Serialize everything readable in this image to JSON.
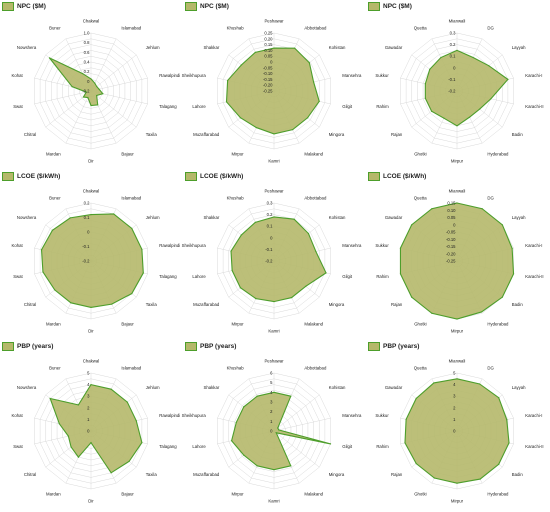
{
  "colors": {
    "fill": "#b5b86a",
    "stroke": "#4d9e2b",
    "grid": "#c8c8c8",
    "spoke": "#d0d0d0"
  },
  "chart_data": [
    {
      "type": "radar",
      "title": "NPC ($M)",
      "categories": [
        "Chakwal",
        "Islamabad",
        "Jehlum",
        "Rawalpindi",
        "Talagang",
        "Taxila",
        "Bajaur",
        "Dir",
        "Mardan",
        "Chitral",
        "Swat",
        "Kohat",
        "Nowshera",
        "Buner"
      ],
      "ticks": [
        "1.0",
        "0.8",
        "0.6",
        "0.4",
        "0.2",
        "0",
        "-0.2"
      ],
      "rlim": [
        -0.2,
        1.0
      ],
      "values": [
        0.05,
        -0.02,
        -0.05,
        -0.03,
        0.05,
        -0.05,
        0.12,
        0.1,
        -0.05,
        0.0,
        -0.1,
        0.2,
        0.9,
        0.2
      ]
    },
    {
      "type": "radar",
      "title": "NPC ($M)",
      "categories": [
        "Peshawar",
        "Abbottabad",
        "Kohistan",
        "Mansehra",
        "Gilgit",
        "Mingora",
        "Malakand",
        "Kamri",
        "Mirpur",
        "Muzaffarabad",
        "Lahore",
        "Sheikhupura",
        "Shakkar",
        "Khushab"
      ],
      "ticks": [
        "0.25",
        "0.20",
        "0.15",
        "0.10",
        "0.05",
        "0",
        "-0.05",
        "-0.10",
        "-0.15",
        "-0.20",
        "-0.25"
      ],
      "rlim": [
        -0.25,
        0.25
      ],
      "values": [
        0.12,
        0.16,
        0.14,
        0.1,
        0.15,
        0.12,
        0.12,
        0.12,
        0.1,
        0.12,
        0.17,
        0.16,
        0.11,
        0.12
      ]
    },
    {
      "type": "radar",
      "title": "NPC ($M)",
      "categories": [
        "Mianwali",
        "DG",
        "Layyah",
        "Karachi-I",
        "Karachi-II",
        "Badin",
        "Hyderabad",
        "Mirpur",
        "Ghotki",
        "Rajan",
        "Rahim",
        "Sukkur",
        "Gawadar",
        "Quetta"
      ],
      "ticks": [
        "0.3",
        "0.2",
        "0.1",
        "0",
        "-0.1",
        "-0.2"
      ],
      "rlim": [
        -0.2,
        0.3
      ],
      "values": [
        0.15,
        0.12,
        0.15,
        0.25,
        0.1,
        0.05,
        0.05,
        0.1,
        0.06,
        0.08,
        0.08,
        0.08,
        0.1,
        0.12
      ]
    },
    {
      "type": "radar",
      "title": "LCOE ($/kWh)",
      "categories": [
        "Chakwal",
        "Islamabad",
        "Jehlum",
        "Rawalpindi",
        "Talagang",
        "Taxila",
        "Bajaur",
        "Dir",
        "Mardan",
        "Chitral",
        "Swat",
        "Kohat",
        "Nowshera",
        "Buner"
      ],
      "ticks": [
        "0.2",
        "0.1",
        "0",
        "-0.1",
        "-0.2"
      ],
      "rlim": [
        -0.2,
        0.2
      ],
      "values": [
        0.12,
        0.16,
        0.16,
        0.16,
        0.17,
        0.16,
        0.13,
        0.12,
        0.12,
        0.12,
        0.14,
        0.15,
        0.14,
        0.13
      ]
    },
    {
      "type": "radar",
      "title": "LCOE ($/kWh)",
      "categories": [
        "Peshawar",
        "Abbottabad",
        "Kohistan",
        "Mansehra",
        "Gilgit",
        "Mingora",
        "Malakand",
        "Kamri",
        "Mirpur",
        "Muzaffarabad",
        "Lahore",
        "Sheikhupura",
        "Shakkar",
        "Khushab"
      ],
      "ticks": [
        "0.3",
        "0.2",
        "0.1",
        "0",
        "-0.1",
        "-0.2"
      ],
      "rlim": [
        -0.2,
        0.3
      ],
      "values": [
        0.18,
        0.2,
        0.18,
        0.17,
        0.26,
        0.15,
        0.15,
        0.15,
        0.16,
        0.17,
        0.17,
        0.18,
        0.16,
        0.17
      ]
    },
    {
      "type": "radar",
      "title": "LCOE ($/kWh)",
      "categories": [
        "Mianwali",
        "DG",
        "Layyah",
        "Karachi-I",
        "Karachi-II",
        "Badin",
        "Hyderabad",
        "Mirpur",
        "Ghotki",
        "Rajan",
        "Rahim",
        "Sukkur",
        "Gawadar",
        "Quetta"
      ],
      "ticks": [
        "0.15",
        "0.10",
        "0.05",
        "0",
        "-0.05",
        "-0.10",
        "-0.15",
        "-0.20",
        "-0.25"
      ],
      "rlim": [
        -0.25,
        0.15
      ],
      "values": [
        0.15,
        0.15,
        0.15,
        0.14,
        0.15,
        0.15,
        0.14,
        0.15,
        0.15,
        0.15,
        0.15,
        0.15,
        0.15,
        0.15
      ]
    },
    {
      "type": "radar",
      "title": "PBP (years)",
      "categories": [
        "Chakwal",
        "Islamabad",
        "Jehlum",
        "Rawalpindi",
        "Talagang",
        "Taxila",
        "Bajaur",
        "Dir",
        "Mardan",
        "Chitral",
        "Swat",
        "Kohat",
        "Nowshera",
        "Buner"
      ],
      "ticks": [
        "5",
        "4",
        "3",
        "2",
        "1",
        "0"
      ],
      "rlim": [
        0,
        5
      ],
      "values": [
        4.0,
        4.0,
        4.0,
        4.0,
        4.5,
        4.2,
        4.0,
        1.0,
        2.5,
        2.2,
        2.0,
        2.8,
        4.5,
        2.5
      ]
    },
    {
      "type": "radar",
      "title": "PBP (years)",
      "categories": [
        "Peshawar",
        "Abbottabad",
        "Kohistan",
        "Mansehra",
        "Gilgit",
        "Mingora",
        "Malakand",
        "Kamri",
        "Mirpur",
        "Muzaffarabad",
        "Lahore",
        "Sheikhupura",
        "Shakkar",
        "Khushab"
      ],
      "ticks": [
        "6",
        "5",
        "4",
        "3",
        "2",
        "1",
        "0"
      ],
      "rlim": [
        0,
        6
      ],
      "values": [
        4.0,
        4.0,
        0.5,
        0.5,
        6.0,
        0.3,
        4.0,
        4.0,
        4.0,
        4.0,
        4.5,
        4.0,
        4.0,
        4.0
      ]
    },
    {
      "type": "radar",
      "title": "PBP (years)",
      "categories": [
        "Mianwali",
        "DG",
        "Layyah",
        "Karachi-I",
        "Karachi-II",
        "Badin",
        "Hyderabad",
        "Mirpur",
        "Ghotki",
        "Rajan",
        "Rahim",
        "Sukkur",
        "Gawadar",
        "Quetta"
      ],
      "ticks": [
        "5",
        "4",
        "3",
        "2",
        "1",
        "0"
      ],
      "rlim": [
        0,
        5
      ],
      "values": [
        4.5,
        4.5,
        4.6,
        4.4,
        4.6,
        4.6,
        4.6,
        4.5,
        4.5,
        4.5,
        4.6,
        4.5,
        4.5,
        4.6
      ]
    }
  ]
}
